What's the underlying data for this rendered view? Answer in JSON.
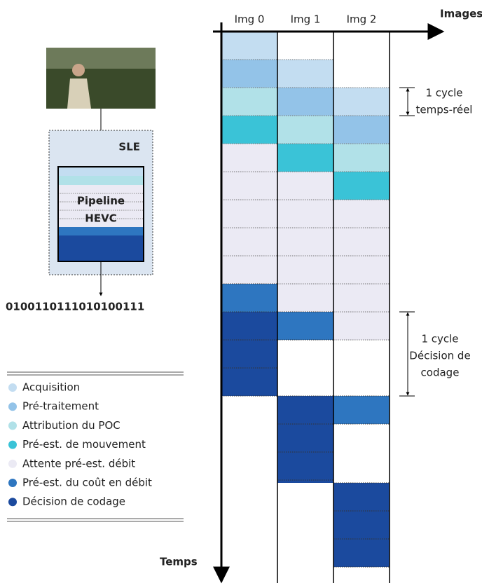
{
  "axes": {
    "horizontal": "Images",
    "vertical": "Temps"
  },
  "columns": [
    "Img 0",
    "Img 1",
    "Img 2"
  ],
  "cycles": [
    {
      "line1": "1 cycle",
      "line2": "temps-réel"
    },
    {
      "line1": "1 cycle",
      "line2": "Décision de",
      "line3": "codage"
    }
  ],
  "encoder": {
    "box": "SLE",
    "pipeline1": "Pipeline",
    "pipeline2": "HEVC",
    "bitstream": "0100110111010100111"
  },
  "legend": [
    {
      "label": "Acquisition",
      "color": "#c3ddf1"
    },
    {
      "label": "Pré-traitement",
      "color": "#93c3e8"
    },
    {
      "label": "Attribution du POC",
      "color": "#b1e1e8"
    },
    {
      "label": "Pré-est. de mouvement",
      "color": "#3ac3d7"
    },
    {
      "label": "Attente pré-est. débit",
      "color": "#ebeaf4"
    },
    {
      "label": "Pré-est. du coût en débit",
      "color": "#2e76c0"
    },
    {
      "label": "Décision de codage",
      "color": "#1b4a9e"
    }
  ]
}
